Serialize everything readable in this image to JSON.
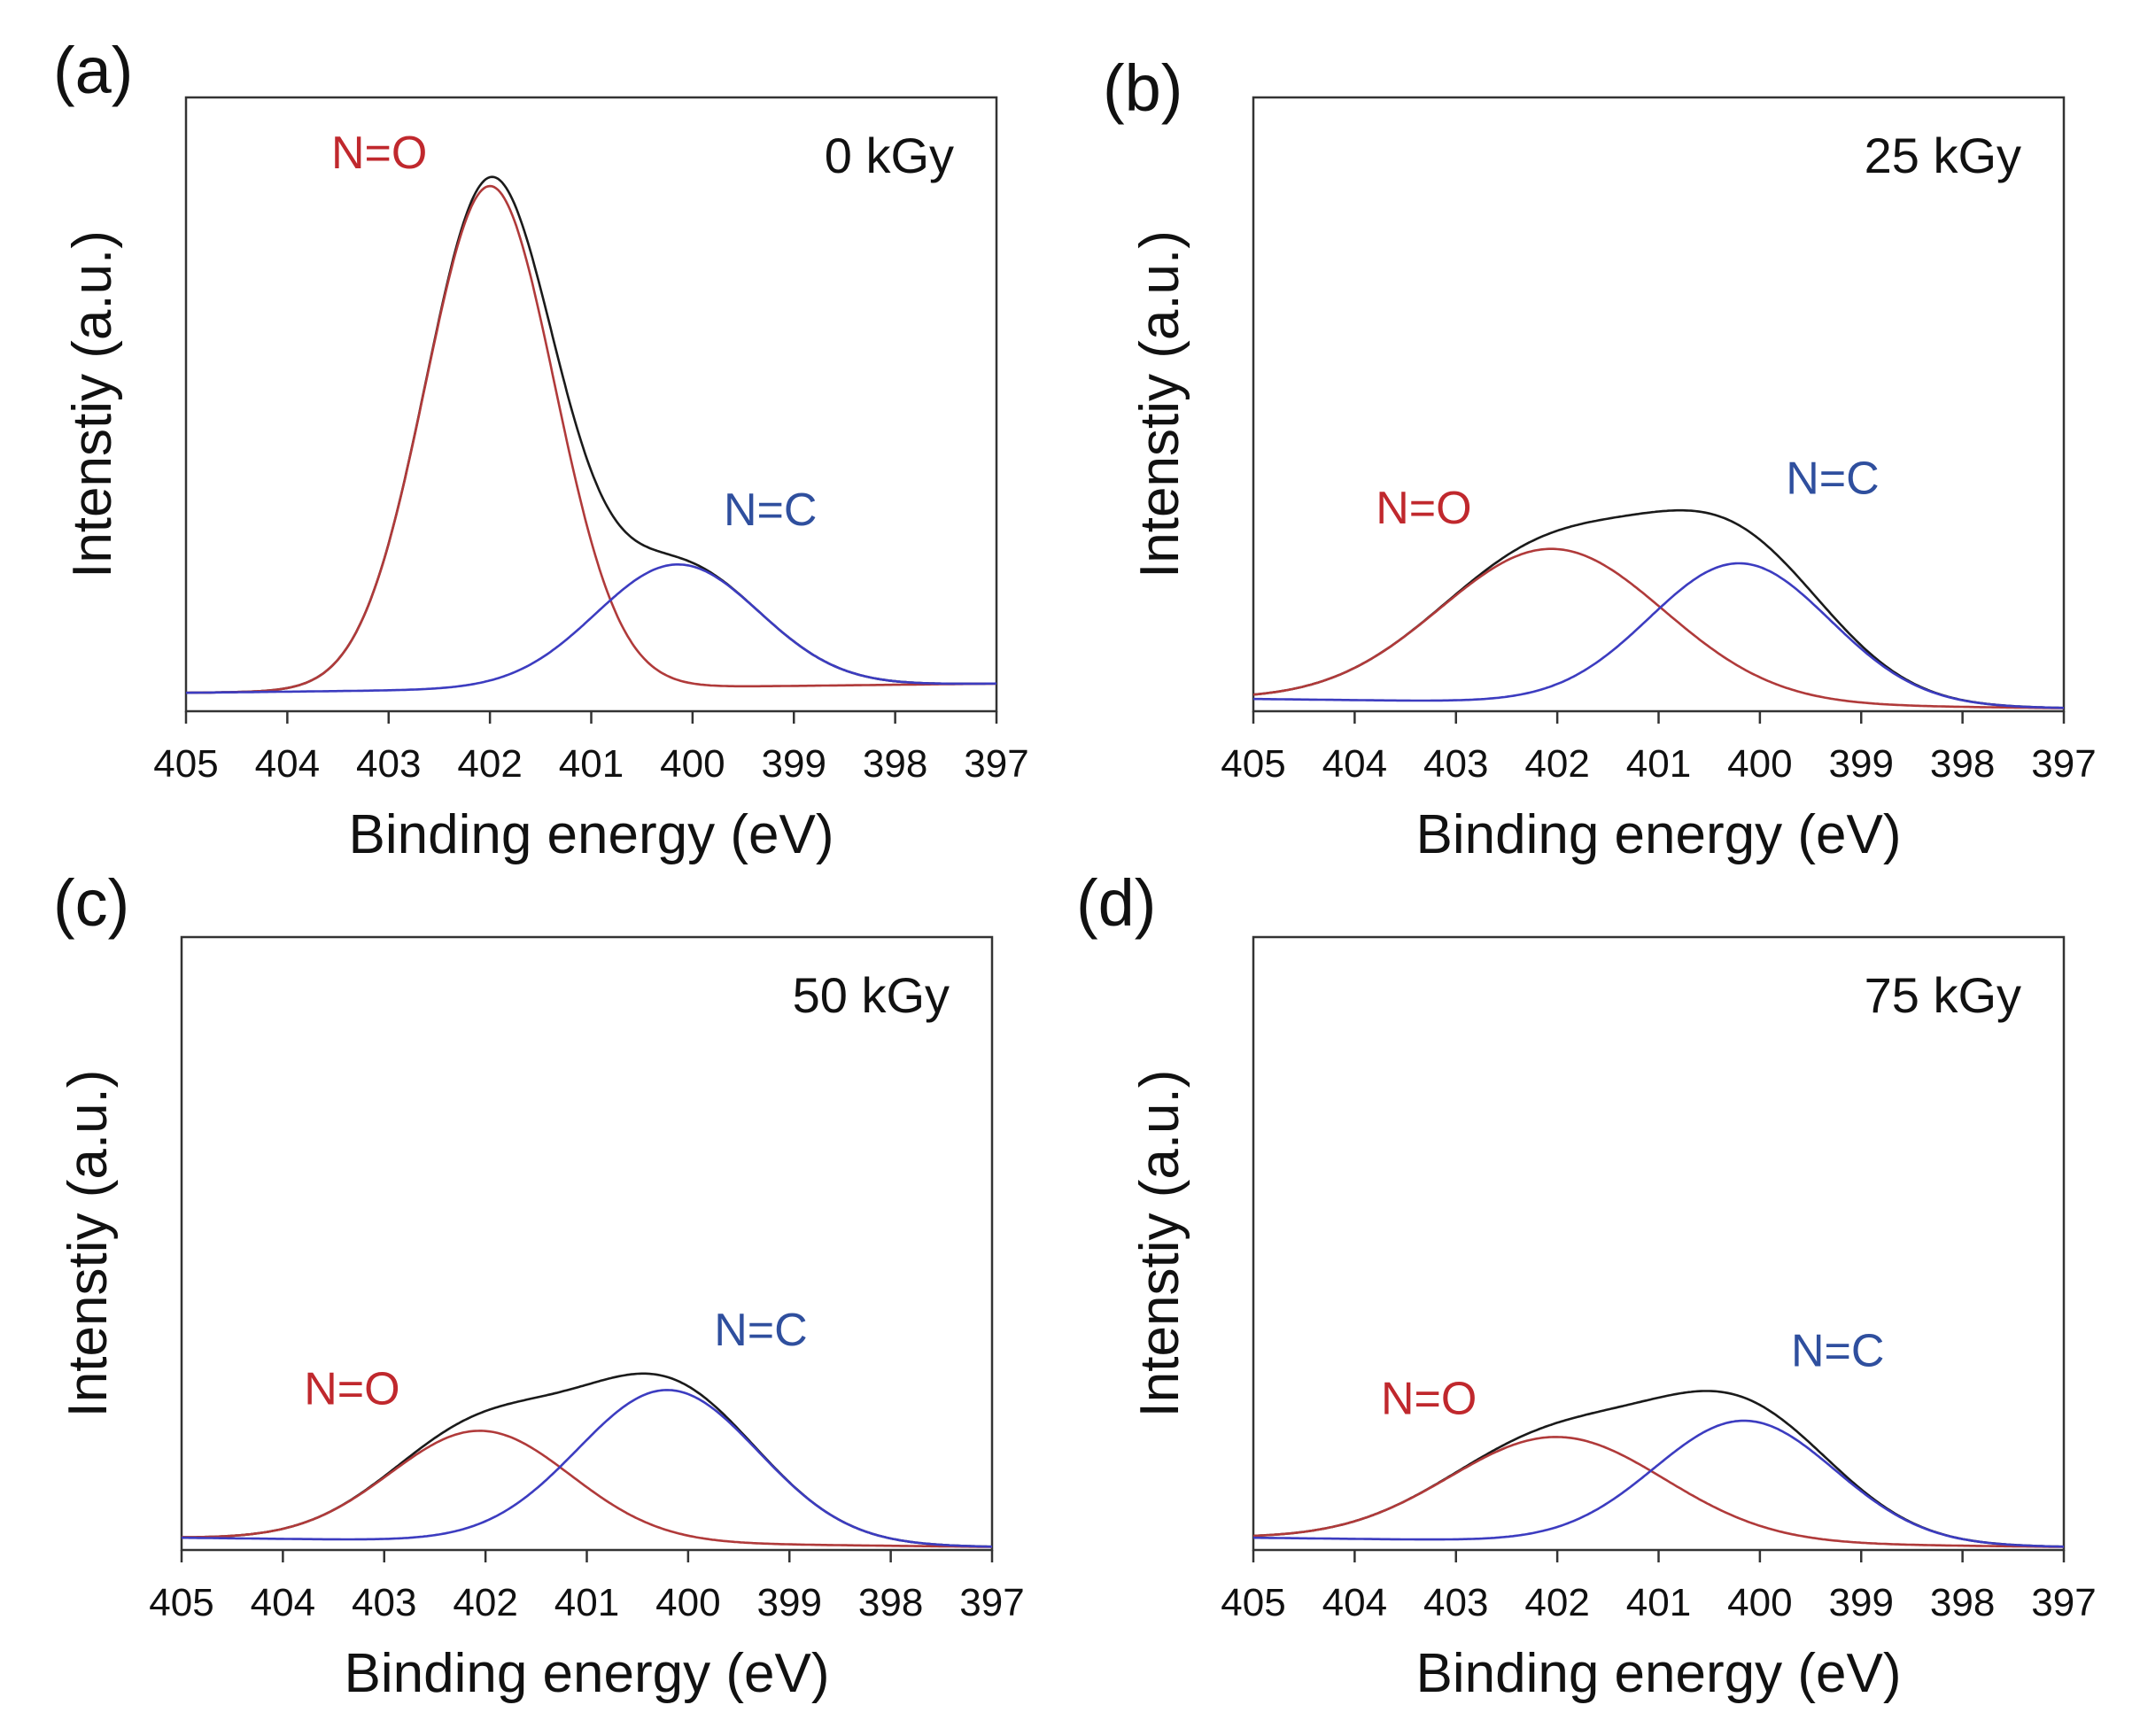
{
  "figure": {
    "colors": {
      "envelope": "#1a1a1a",
      "no_component": "#b03a3a",
      "nc_component": "#3c3cc0",
      "no_label": "#c0282d",
      "nc_label": "#2f4f9e",
      "frame": "#333333"
    }
  },
  "chart_data": [
    {
      "type": "line",
      "panel": "(a)",
      "dose": "0 kGy",
      "xlabel": "Binding energy (eV)",
      "ylabel": "Intenstiy (a.u.)",
      "xlim": [
        405,
        397
      ],
      "ylim": [
        0,
        1.0
      ],
      "x_ticks": [
        405,
        404,
        403,
        402,
        401,
        400,
        399,
        398,
        397
      ],
      "tick_labels": [
        "405",
        "404",
        "403",
        "402",
        "401",
        "400",
        "399",
        "398",
        "397"
      ],
      "baseline": {
        "start": 0.03,
        "end": 0.045
      },
      "series": [
        {
          "name": "N=O",
          "center": 402.0,
          "amplitude": 0.82,
          "fwhm": 1.5
        },
        {
          "name": "N=C",
          "center": 400.15,
          "amplitude": 0.2,
          "fwhm": 1.9
        }
      ],
      "annotations": [
        {
          "text": "N=O",
          "near": "402.0 eV peak, left"
        },
        {
          "text": "N=C",
          "near": "400.1 eV peak, above"
        }
      ]
    },
    {
      "type": "line",
      "panel": "(b)",
      "dose": "25 kGy",
      "xlabel": "Binding energy (eV)",
      "ylabel": "Intenstiy (a.u.)",
      "xlim": [
        405,
        397
      ],
      "ylim": [
        0,
        1.0
      ],
      "x_ticks": [
        405,
        404,
        403,
        402,
        401,
        400,
        399,
        398,
        397
      ],
      "tick_labels": [
        "405",
        "404",
        "403",
        "402",
        "401",
        "400",
        "399",
        "398",
        "397"
      ],
      "baseline": {
        "start": 0.02,
        "end": 0.005
      },
      "series": [
        {
          "name": "N=O",
          "center": 402.05,
          "amplitude": 0.25,
          "fwhm": 2.6
        },
        {
          "name": "N=C",
          "center": 400.2,
          "amplitude": 0.23,
          "fwhm": 2.1
        }
      ],
      "annotations": [
        {
          "text": "N=O",
          "near": "402.0 eV peak, left"
        },
        {
          "text": "N=C",
          "near": "400.2 eV peak, above"
        }
      ]
    },
    {
      "type": "line",
      "panel": "(c)",
      "dose": "50 kGy",
      "xlabel": "Binding energy (eV)",
      "ylabel": "Intenstiy (a.u.)",
      "xlim": [
        405,
        397
      ],
      "ylim": [
        0,
        1.0
      ],
      "x_ticks": [
        405,
        404,
        403,
        402,
        401,
        400,
        399,
        398,
        397
      ],
      "tick_labels": [
        "405",
        "404",
        "403",
        "402",
        "401",
        "400",
        "399",
        "398",
        "397"
      ],
      "baseline": {
        "start": 0.02,
        "end": 0.005
      },
      "series": [
        {
          "name": "N=O",
          "center": 402.05,
          "amplitude": 0.18,
          "fwhm": 2.1
        },
        {
          "name": "N=C",
          "center": 400.2,
          "amplitude": 0.25,
          "fwhm": 2.1
        }
      ],
      "annotations": [
        {
          "text": "N=O",
          "near": "402.0 eV peak, left"
        },
        {
          "text": "N=C",
          "near": "400.2 eV peak, above"
        }
      ]
    },
    {
      "type": "line",
      "panel": "(d)",
      "dose": "75 kGy",
      "xlabel": "Binding energy (eV)",
      "ylabel": "Intenstiy (a.u.)",
      "xlim": [
        405,
        397
      ],
      "ylim": [
        0,
        1.0
      ],
      "x_ticks": [
        405,
        404,
        403,
        402,
        401,
        400,
        399,
        398,
        397
      ],
      "tick_labels": [
        "405",
        "404",
        "403",
        "402",
        "401",
        "400",
        "399",
        "398",
        "397"
      ],
      "baseline": {
        "start": 0.02,
        "end": 0.005
      },
      "series": [
        {
          "name": "N=O",
          "center": 402.0,
          "amplitude": 0.17,
          "fwhm": 2.5
        },
        {
          "name": "N=C",
          "center": 400.15,
          "amplitude": 0.2,
          "fwhm": 2.1
        }
      ],
      "annotations": [
        {
          "text": "N=O",
          "near": "402.0 eV peak, left"
        },
        {
          "text": "N=C",
          "near": "400.2 eV peak, above"
        }
      ]
    }
  ]
}
